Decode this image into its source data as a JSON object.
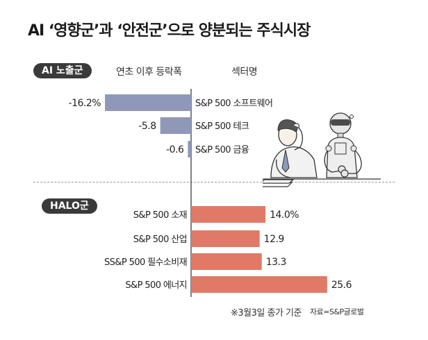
{
  "title": "AI ‘영향군’과 ‘안전군’으로 양분되는 주식시장",
  "groups": {
    "ai": "AI 노출군",
    "halo": "HALO군"
  },
  "headers": {
    "change": "연초 이후 등락폭",
    "sector": "섹터명"
  },
  "note": "※3월3일 종가 기준",
  "source": "자료=S&P글로벌",
  "chart_data": {
    "type": "bar",
    "orientation": "horizontal",
    "unit": "%",
    "groups": [
      {
        "name": "AI 노출군",
        "color": "#8f98b8",
        "categories": [
          "S&P 500 소프트웨어",
          "S&P 500 테크",
          "S&P 500 금융"
        ],
        "values": [
          -16.2,
          -5.8,
          -0.6
        ],
        "labels": [
          "-16.2%",
          "-5.8",
          "-0.6"
        ]
      },
      {
        "name": "HALO군",
        "color": "#e07a66",
        "categories": [
          "S&P 500 소재",
          "S&P 500 산업",
          "SS&P 500 필수소비재",
          "S&P 500 에너지"
        ],
        "values": [
          14.0,
          12.9,
          13.3,
          25.6
        ],
        "labels": [
          "14.0%",
          "12.9",
          "13.3",
          "25.6"
        ]
      }
    ]
  }
}
